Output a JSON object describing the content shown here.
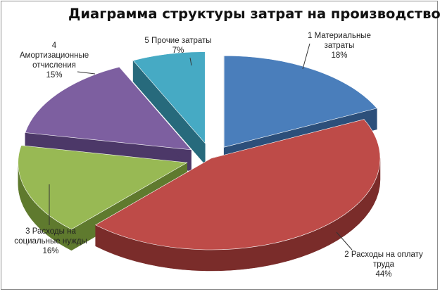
{
  "chart_data": {
    "type": "pie",
    "style": "3d-exploded",
    "title": "Диаграмма структуры затрат на производство",
    "slices": [
      {
        "lines": [
          "1 Материальные",
          "затраты"
        ],
        "value": 18,
        "pct_label": "18%",
        "color": "#4a7ebb",
        "side": "#2c4f7a"
      },
      {
        "lines": [
          "2 Расходы на оплату",
          "труда"
        ],
        "value": 44,
        "pct_label": "44%",
        "color": "#be4b48",
        "side": "#7a2c2a"
      },
      {
        "lines": [
          "3 Расходы на",
          "социальные нужды"
        ],
        "value": 16,
        "pct_label": "16%",
        "color": "#98b954",
        "side": "#5f7a2e"
      },
      {
        "lines": [
          "4",
          "Амортизационные",
          "отчисления"
        ],
        "value": 15,
        "pct_label": "15%",
        "color": "#7d5fa0",
        "side": "#4c3868"
      },
      {
        "lines": [
          "5 Прочие затраты"
        ],
        "value": 7,
        "pct_label": "7%",
        "color": "#46aac4",
        "side": "#276a7c"
      }
    ],
    "legend": "none"
  }
}
